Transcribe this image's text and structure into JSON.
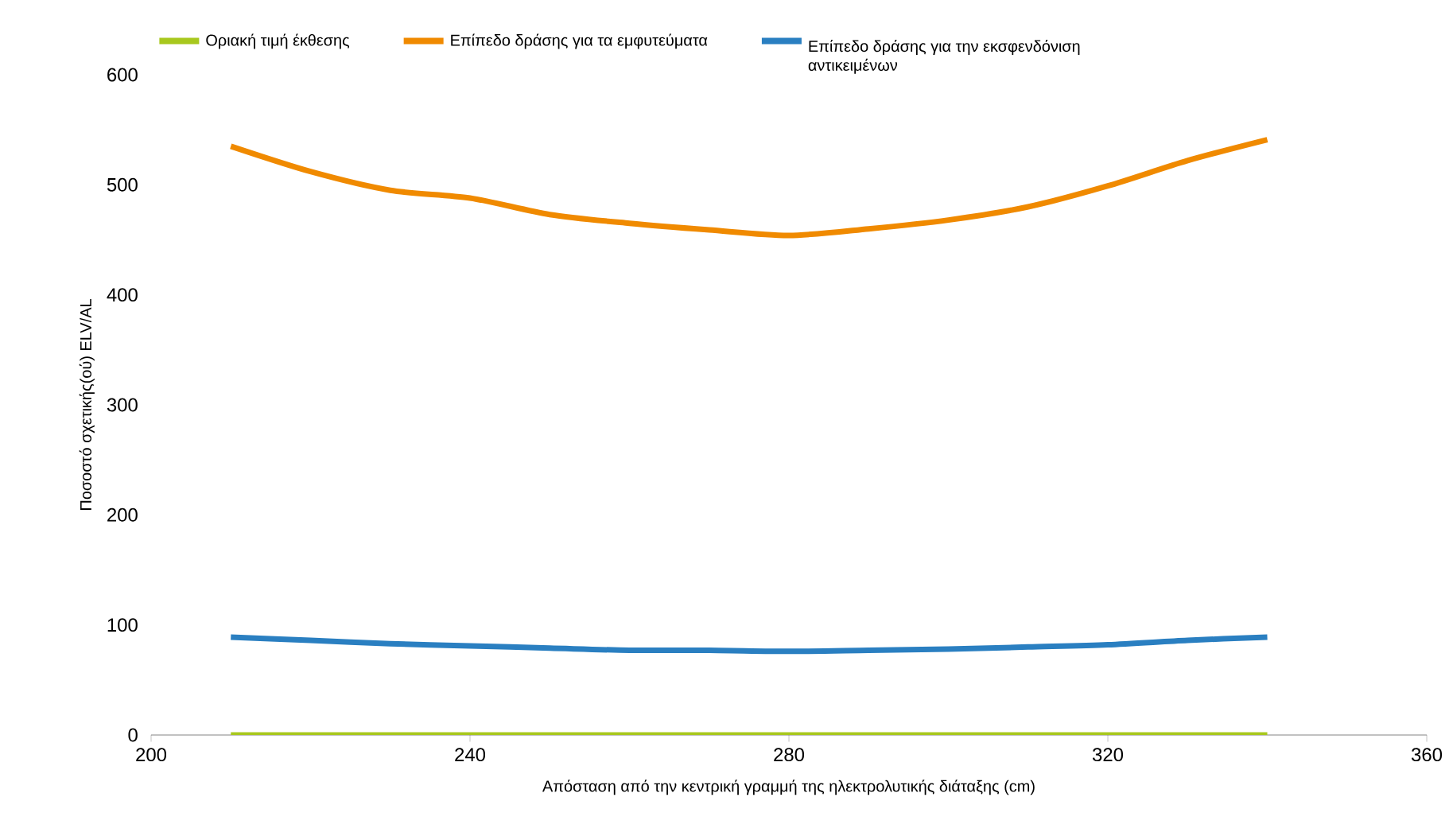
{
  "chart_data": {
    "type": "line",
    "xlabel": "Απόσταση από την κεντρική γραμμή της ηλεκτρολυτικής διάταξης (cm)",
    "ylabel": "Ποσοστό σχετικής(ού) ELV/AL",
    "x": [
      210,
      220,
      230,
      240,
      250,
      260,
      270,
      280,
      290,
      300,
      310,
      320,
      330,
      340
    ],
    "series": [
      {
        "name": "Οριακή τιμή έκθεσης",
        "color": "#a8c81e",
        "values": [
          0,
          0,
          0,
          0,
          0,
          0,
          0,
          0,
          0,
          0,
          0,
          0,
          0,
          0
        ]
      },
      {
        "name": "Επίπεδο δράσης για τα εμφυτεύματα",
        "color": "#f08a00",
        "values": [
          535,
          512,
          495,
          488,
          473,
          465,
          459,
          454,
          460,
          468,
          480,
          499,
          522,
          541
        ]
      },
      {
        "name": "Επίπεδο δράσης για την εκσφενδόνιση αντικειμένων",
        "color": "#2a7fc1",
        "values": [
          89,
          86,
          83,
          81,
          79,
          77,
          77,
          76,
          77,
          78,
          80,
          82,
          86,
          89
        ]
      }
    ],
    "xlim": [
      200,
      360
    ],
    "xticks": [
      200,
      240,
      280,
      320,
      360
    ],
    "ylim": [
      0,
      600
    ],
    "yticks": [
      0,
      100,
      200,
      300,
      400,
      500,
      600
    ],
    "grid": false,
    "legend": "top",
    "marker": "none",
    "line_style": "solid"
  }
}
